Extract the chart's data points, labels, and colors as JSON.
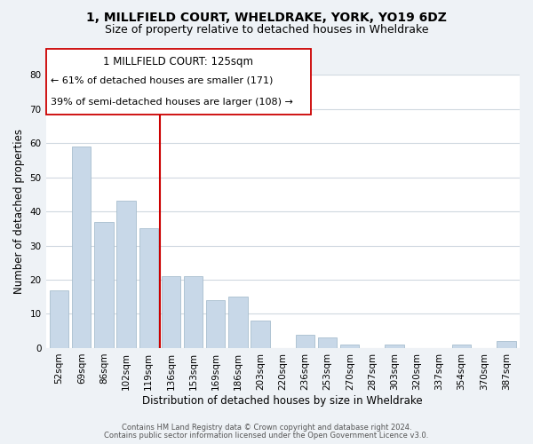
{
  "title": "1, MILLFIELD COURT, WHELDRAKE, YORK, YO19 6DZ",
  "subtitle": "Size of property relative to detached houses in Wheldrake",
  "xlabel": "Distribution of detached houses by size in Wheldrake",
  "ylabel": "Number of detached properties",
  "bar_labels": [
    "52sqm",
    "69sqm",
    "86sqm",
    "102sqm",
    "119sqm",
    "136sqm",
    "153sqm",
    "169sqm",
    "186sqm",
    "203sqm",
    "220sqm",
    "236sqm",
    "253sqm",
    "270sqm",
    "287sqm",
    "303sqm",
    "320sqm",
    "337sqm",
    "354sqm",
    "370sqm",
    "387sqm"
  ],
  "bar_values": [
    17,
    59,
    37,
    43,
    35,
    21,
    21,
    14,
    15,
    8,
    0,
    4,
    3,
    1,
    0,
    1,
    0,
    0,
    1,
    0,
    2
  ],
  "bar_color": "#c8d8e8",
  "bar_edge_color": "#a8bece",
  "ylim": [
    0,
    80
  ],
  "yticks": [
    0,
    10,
    20,
    30,
    40,
    50,
    60,
    70,
    80
  ],
  "property_line_x": 4.5,
  "property_line_color": "#cc0000",
  "annotation_title": "1 MILLFIELD COURT: 125sqm",
  "annotation_line1": "← 61% of detached houses are smaller (171)",
  "annotation_line2": "39% of semi-detached houses are larger (108) →",
  "footer_line1": "Contains HM Land Registry data © Crown copyright and database right 2024.",
  "footer_line2": "Contains public sector information licensed under the Open Government Licence v3.0.",
  "background_color": "#eef2f6",
  "plot_background_color": "#ffffff",
  "title_fontsize": 10,
  "subtitle_fontsize": 9,
  "axis_label_fontsize": 8.5,
  "tick_fontsize": 7.5,
  "grid_color": "#d0d8e0"
}
